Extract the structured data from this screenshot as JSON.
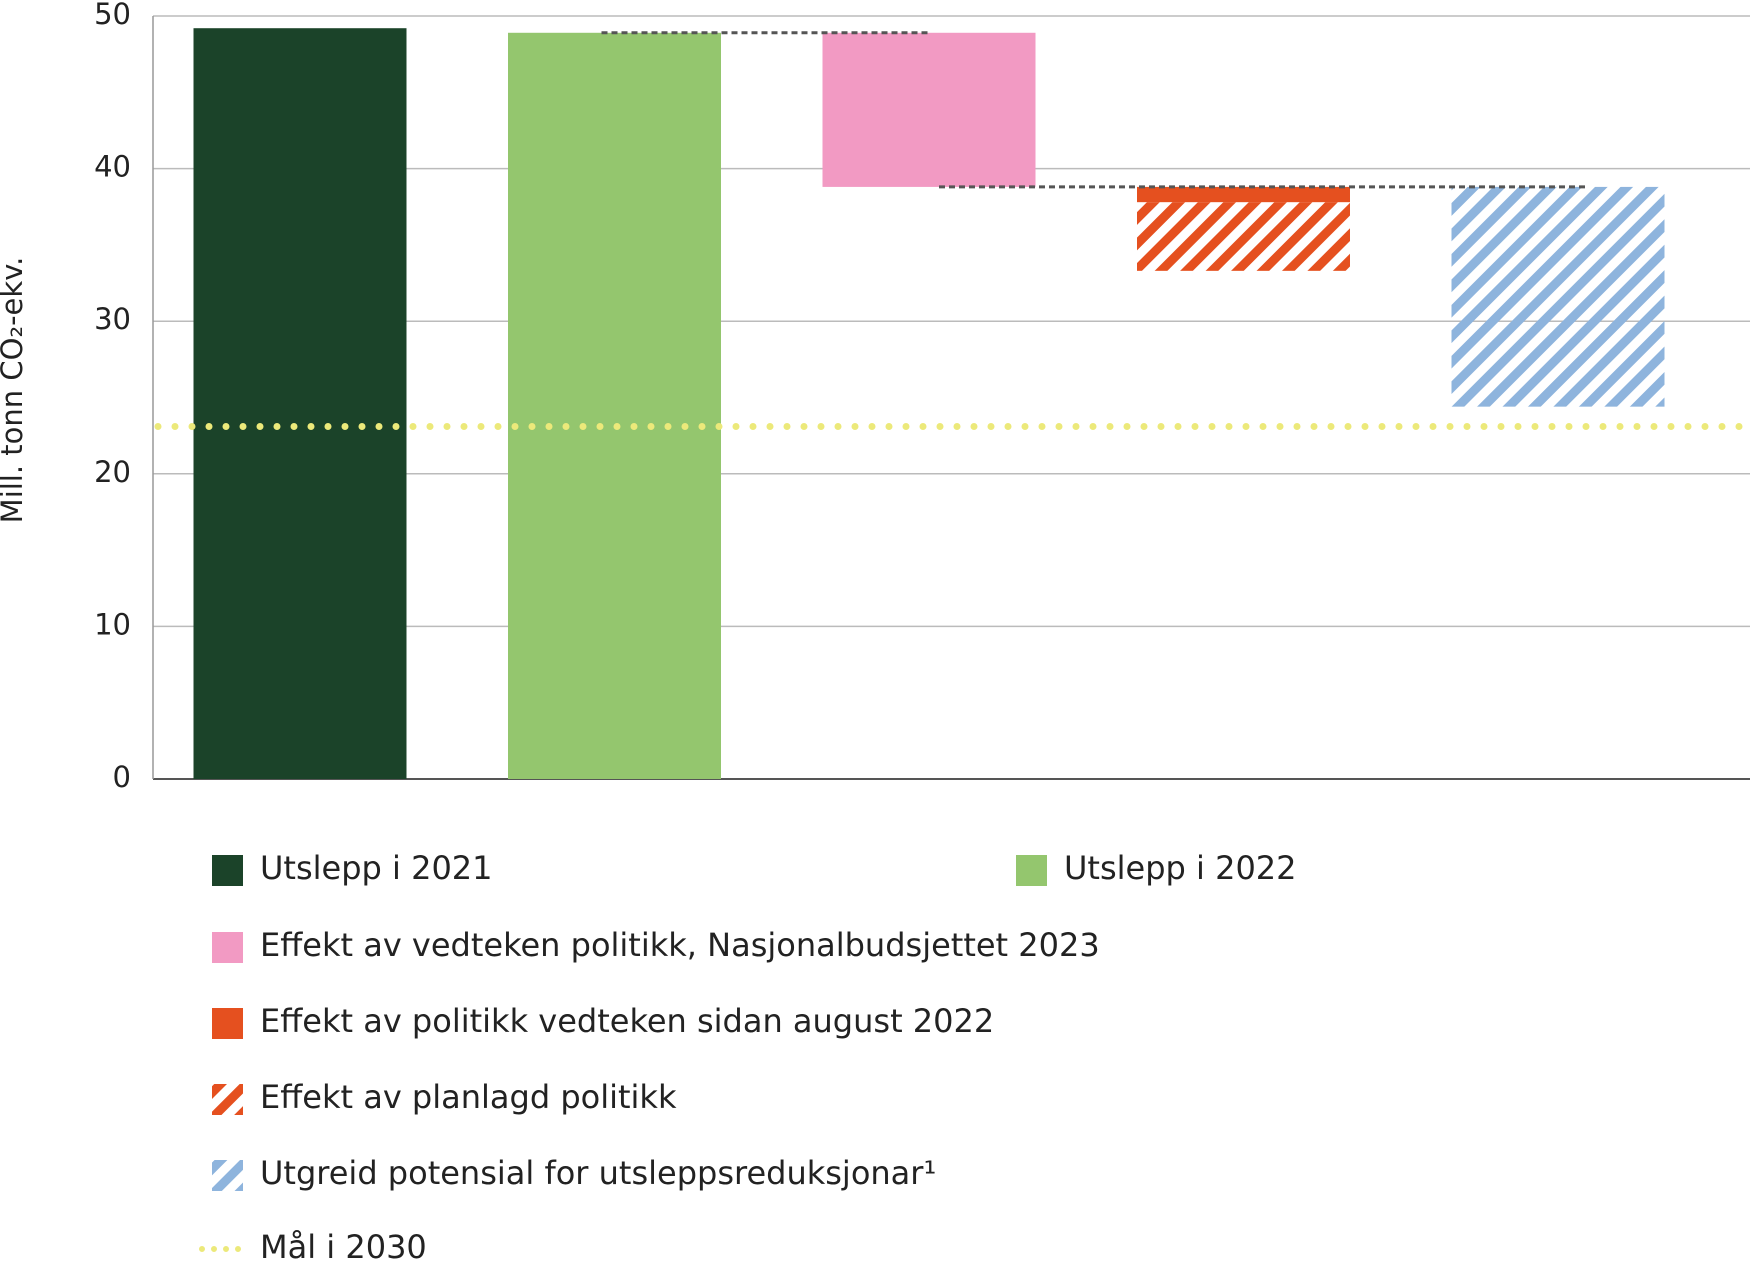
{
  "chart_data": {
    "type": "waterfall",
    "y_label": "Mill. tonn CO₂-ekv.",
    "categories": [
      null,
      null,
      null,
      null,
      null
    ],
    "series": [
      {
        "name": "Utslepp i 2021",
        "color": "#1b4329",
        "kind": "total",
        "values": [
          49.2,
          null,
          null,
          null,
          null
        ]
      },
      {
        "name": "Utslepp i 2022",
        "color": "#94c66e",
        "kind": "total",
        "values": [
          null,
          48.9,
          null,
          null,
          null
        ]
      },
      {
        "name": "Effekt av vedteken politikk, Nasjonalbudsjettet 2023",
        "color": "#f29ac3",
        "kind": "change",
        "values": [
          null,
          null,
          -10.1,
          null,
          null
        ]
      },
      {
        "name": "Effekt av politikk vedteken sidan august 2022",
        "color": "#e5501f",
        "kind": "change",
        "values": [
          null,
          null,
          null,
          -1.0,
          null
        ]
      },
      {
        "name": "Effekt av planlagd politikk",
        "color": "#e5501f",
        "kind": "change",
        "hatch": true,
        "values": [
          null,
          null,
          null,
          -4.5,
          null
        ]
      },
      {
        "name": "Utgreid potensial for utsleppsreduksjonar¹",
        "color": "#8eb4dd",
        "kind": "change",
        "hatch": true,
        "values": [
          null,
          null,
          null,
          null,
          -14.4
        ]
      }
    ],
    "target": {
      "name": "Mål i 2030",
      "value": 23.1,
      "color": "#ece97a"
    },
    "ylim": [
      0,
      50
    ],
    "yticks": [
      0,
      10,
      20,
      30,
      40,
      50
    ],
    "grid": true
  }
}
